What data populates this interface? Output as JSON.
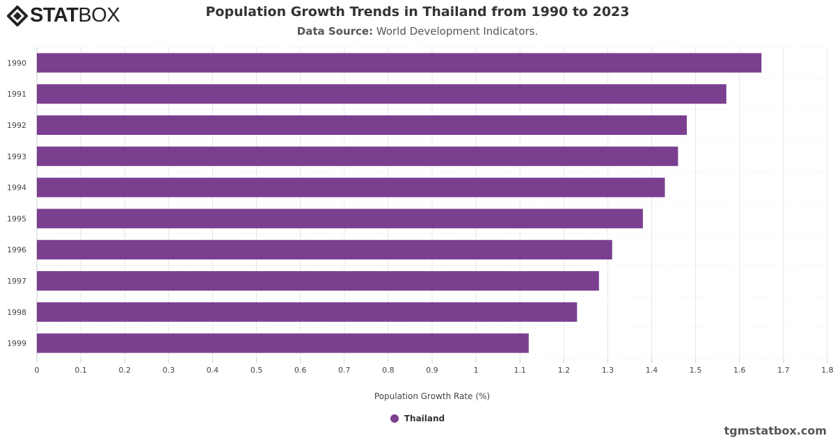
{
  "logo_text": {
    "bold": "STAT",
    "light": "BOX"
  },
  "chart_data": {
    "type": "bar",
    "orientation": "horizontal",
    "title": "Population Growth Trends in Thailand from 1990 to 2023",
    "subtitle_label": "Data Source:",
    "subtitle_value": "World Development Indicators.",
    "categories": [
      "1990",
      "1991",
      "1992",
      "1993",
      "1994",
      "1995",
      "1996",
      "1997",
      "1998",
      "1999"
    ],
    "series": [
      {
        "name": "Thailand",
        "color": "#7b3f8f",
        "values": [
          1.65,
          1.57,
          1.48,
          1.46,
          1.43,
          1.38,
          1.31,
          1.28,
          1.23,
          1.12
        ]
      }
    ],
    "xlabel": "Population Growth Rate (%)",
    "xlim": [
      0,
      1.8
    ],
    "xticks": [
      "0",
      "0.1",
      "0.2",
      "0.3",
      "0.4",
      "0.5",
      "0.6",
      "0.7",
      "0.8",
      "0.9",
      "1",
      "1.1",
      "1.2",
      "1.3",
      "1.4",
      "1.5",
      "1.6",
      "1.7",
      "1.8"
    ],
    "grid": true,
    "legend": "bottom"
  },
  "credit": "tgmstatbox.com"
}
